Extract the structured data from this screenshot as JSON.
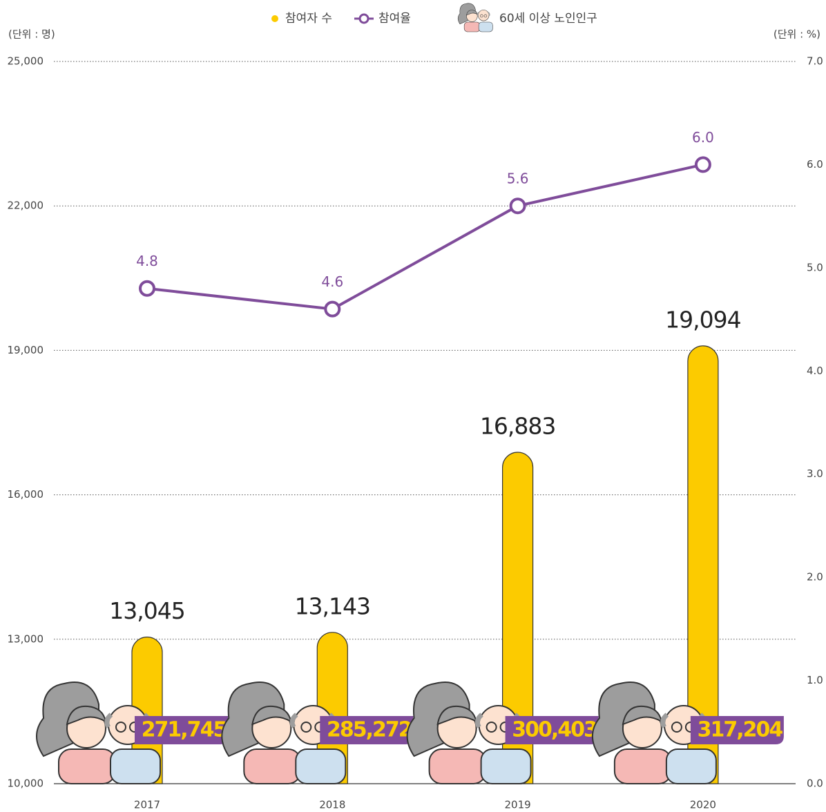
{
  "chart_data": {
    "type": "combo",
    "legend_position": "top",
    "y_unit_label": "(단위 : 명)",
    "y2_unit_label": "(단위 : %)",
    "categories": [
      "2017",
      "2018",
      "2019",
      "2020"
    ],
    "series": [
      {
        "name": "참여자 수",
        "type": "bar",
        "color": "#fccb00",
        "values": [
          13045,
          13143,
          16883,
          19094
        ],
        "value_labels": [
          "13,045",
          "13,143",
          "16,883",
          "19,094"
        ]
      },
      {
        "name": "참여율",
        "type": "line",
        "axis": "y2",
        "color": "#7f4c9a",
        "values": [
          4.8,
          4.6,
          5.6,
          6.0
        ],
        "value_labels": [
          "4.8",
          "4.6",
          "5.6",
          "6.0"
        ]
      },
      {
        "name": "60세 이상 노인인구",
        "type": "badge",
        "color": "#7f4c9a",
        "label_color": "#fccb00",
        "values": [
          271745,
          285272,
          300403,
          317204
        ],
        "value_labels": [
          "271,745",
          "285,272",
          "300,403",
          "317,204"
        ]
      }
    ],
    "ylim": [
      10000,
      25000
    ],
    "yticks": [
      {
        "value": 10000,
        "label": "10,000"
      },
      {
        "value": 13000,
        "label": "13,000"
      },
      {
        "value": 16000,
        "label": "16,000"
      },
      {
        "value": 19000,
        "label": "19,000"
      },
      {
        "value": 22000,
        "label": "22,000"
      },
      {
        "value": 25000,
        "label": "25,000"
      }
    ],
    "y2lim": [
      0,
      7
    ],
    "y2ticks": [
      {
        "value": 0,
        "label": "0.0"
      },
      {
        "value": 1,
        "label": "1.0"
      },
      {
        "value": 2,
        "label": "2.0"
      },
      {
        "value": 3,
        "label": "3.0"
      },
      {
        "value": 4,
        "label": "4.0"
      },
      {
        "value": 5,
        "label": "5.0"
      },
      {
        "value": 6,
        "label": "6.0"
      },
      {
        "value": 7,
        "label": "7.0"
      }
    ],
    "grid": true
  }
}
